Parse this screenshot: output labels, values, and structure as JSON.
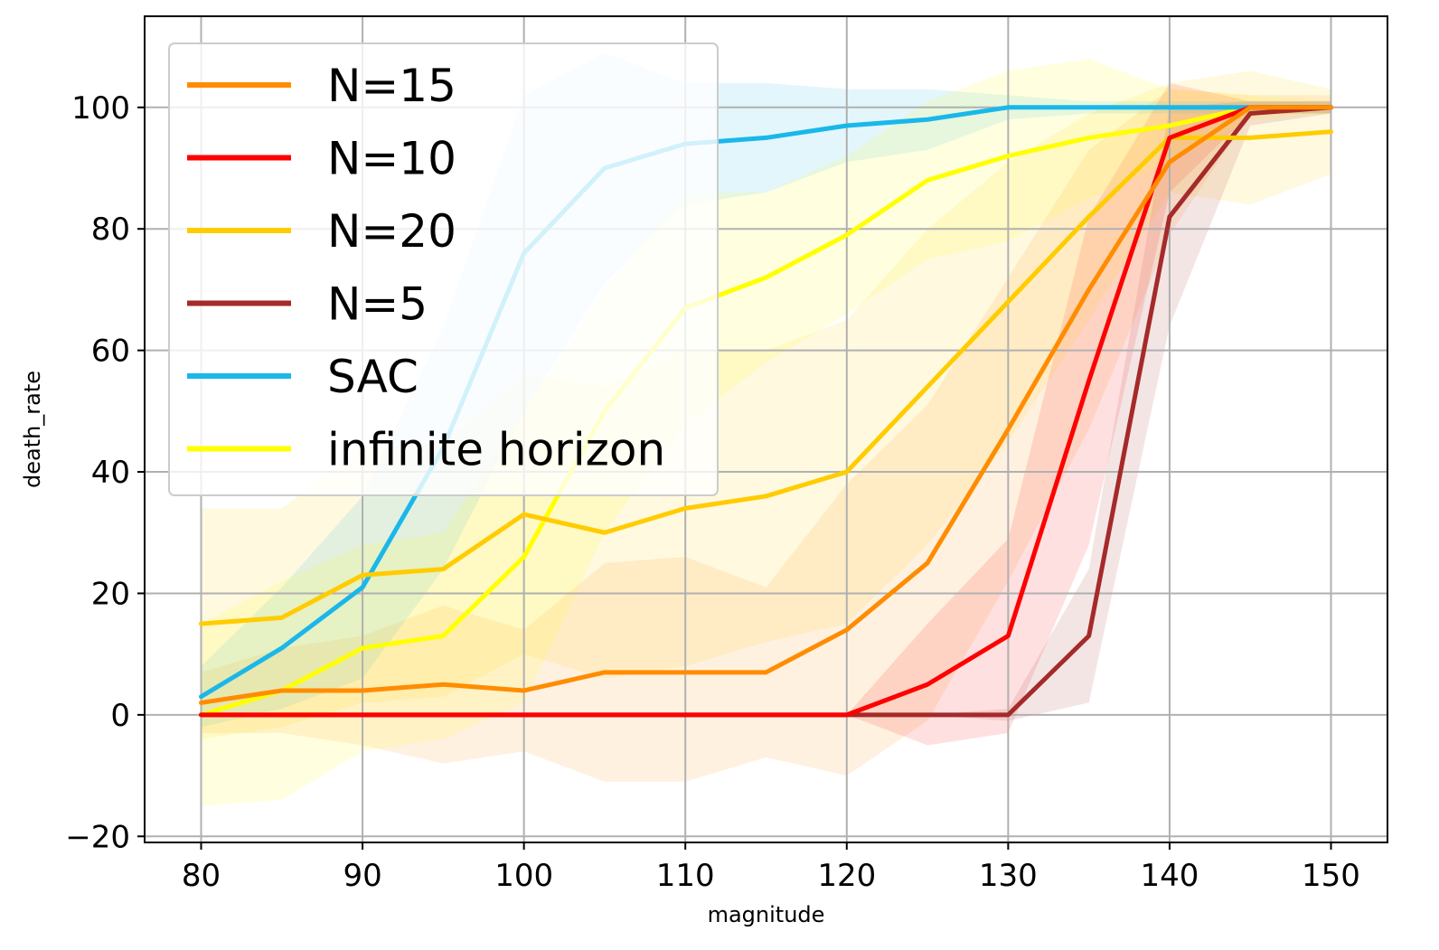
{
  "chart_data": {
    "type": "line",
    "xlabel": "magnitude",
    "ylabel": "death_rate",
    "xlim": [
      76.5,
      153.5
    ],
    "ylim": [
      -21,
      115
    ],
    "x_ticks": [
      80,
      90,
      100,
      110,
      120,
      130,
      140,
      150
    ],
    "y_ticks": [
      -20,
      0,
      20,
      40,
      60,
      80,
      100
    ],
    "x_tick_labels": [
      "80",
      "90",
      "100",
      "110",
      "120",
      "130",
      "140",
      "150"
    ],
    "y_tick_labels": [
      "−20",
      "0",
      "20",
      "40",
      "60",
      "80",
      "100"
    ],
    "grid": true,
    "legend_position": "top-left",
    "x": [
      80,
      85,
      90,
      95,
      100,
      105,
      110,
      115,
      120,
      125,
      130,
      135,
      140,
      145,
      150
    ],
    "series": [
      {
        "name": "N=15",
        "color": "#ff8c00",
        "values": [
          2,
          4,
          4,
          5,
          4,
          7,
          7,
          7,
          14,
          25,
          47,
          70,
          91,
          100,
          100
        ],
        "lower": [
          -3,
          -3,
          -5,
          -8,
          -6,
          -11,
          -11,
          -7,
          -10,
          -1,
          22,
          47,
          79,
          99,
          99
        ],
        "upper": [
          7,
          11,
          13,
          18,
          14,
          25,
          26,
          21,
          38,
          51,
          72,
          93,
          103,
          102,
          102
        ]
      },
      {
        "name": "N=10",
        "color": "#ff0000",
        "values": [
          0,
          0,
          0,
          0,
          0,
          0,
          0,
          0,
          0,
          5,
          13,
          55,
          95,
          100,
          100
        ],
        "lower": [
          0,
          0,
          0,
          0,
          0,
          0,
          0,
          0,
          0,
          -5,
          -3,
          28,
          86,
          99,
          99
        ],
        "upper": [
          0,
          0,
          0,
          0,
          0,
          0,
          0,
          0,
          0,
          15,
          29,
          82,
          104,
          101,
          101
        ]
      },
      {
        "name": "N=20",
        "color": "#ffcc00",
        "values": [
          15,
          16,
          23,
          24,
          33,
          30,
          34,
          36,
          40,
          54,
          68,
          82,
          95,
          95,
          96
        ],
        "lower": [
          -4,
          -2,
          2,
          3,
          10,
          6,
          8,
          12,
          15,
          28,
          45,
          65,
          86,
          84,
          89
        ],
        "upper": [
          34,
          34,
          44,
          45,
          56,
          54,
          60,
          60,
          65,
          80,
          91,
          99,
          104,
          106,
          103
        ]
      },
      {
        "name": "N=5",
        "color": "#a52a2a",
        "values": [
          0,
          0,
          0,
          0,
          0,
          0,
          0,
          0,
          0,
          0,
          0,
          13,
          82,
          99,
          100
        ],
        "lower": [
          0,
          0,
          0,
          0,
          0,
          0,
          0,
          0,
          0,
          0,
          -1,
          2,
          64,
          97,
          99
        ],
        "upper": [
          0,
          0,
          0,
          0,
          0,
          0,
          0,
          0,
          0,
          0,
          1,
          24,
          100,
          101,
          101
        ]
      },
      {
        "name": "SAC",
        "color": "#1ab7ea",
        "values": [
          3,
          11,
          21,
          44,
          76,
          90,
          94,
          95,
          97,
          98,
          100,
          100,
          100,
          100,
          100
        ],
        "lower": [
          -2,
          1,
          6,
          24,
          50,
          71,
          84,
          86,
          91,
          93,
          98,
          99,
          99,
          99,
          99
        ],
        "upper": [
          8,
          21,
          36,
          64,
          102,
          109,
          104,
          104,
          103,
          103,
          102,
          101,
          101,
          101,
          101
        ]
      },
      {
        "name": "infinite horizon",
        "color": "#ffff00",
        "values": [
          0,
          4,
          11,
          13,
          26,
          50,
          67,
          72,
          79,
          88,
          92,
          95,
          97,
          100,
          100
        ],
        "lower": [
          -15,
          -14,
          -6,
          -4,
          2,
          30,
          48,
          58,
          66,
          75,
          78,
          85,
          91,
          98,
          99
        ],
        "upper": [
          15,
          22,
          28,
          30,
          50,
          70,
          86,
          86,
          92,
          101,
          106,
          108,
          103,
          102,
          101
        ]
      }
    ]
  }
}
